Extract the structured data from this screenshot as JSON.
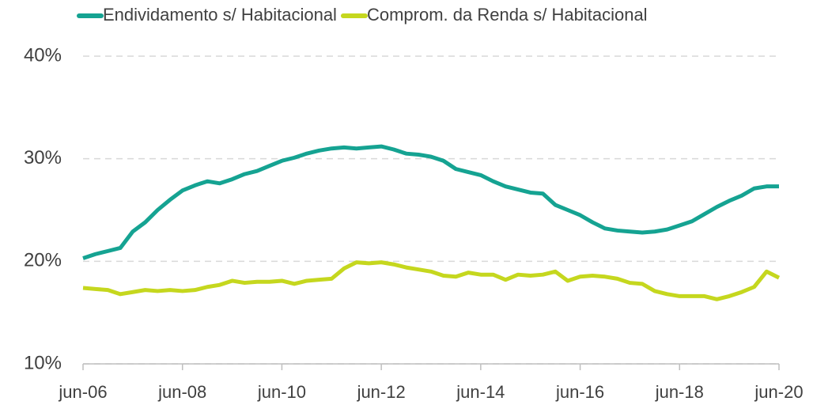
{
  "chart_data": {
    "type": "line",
    "categories": [
      "jun-06",
      null,
      null,
      null,
      null,
      null,
      null,
      null,
      "jun-08",
      null,
      null,
      null,
      null,
      null,
      null,
      null,
      "jun-10",
      null,
      null,
      null,
      null,
      null,
      null,
      null,
      "jun-12",
      null,
      null,
      null,
      null,
      null,
      null,
      null,
      "jun-14",
      null,
      null,
      null,
      null,
      null,
      null,
      null,
      "jun-16",
      null,
      null,
      null,
      null,
      null,
      null,
      null,
      "jun-18",
      null,
      null,
      null,
      null,
      null,
      null,
      null,
      "jun-20"
    ],
    "series": [
      {
        "name": "Endividamento s/ Habitacional",
        "color": "#15a392",
        "values": [
          20.3,
          20.7,
          21.0,
          21.3,
          22.9,
          23.8,
          25.0,
          26.0,
          26.9,
          27.4,
          27.8,
          27.6,
          28.0,
          28.5,
          28.8,
          29.3,
          29.8,
          30.1,
          30.5,
          30.8,
          31.0,
          31.1,
          31.0,
          31.1,
          31.2,
          30.9,
          30.5,
          30.4,
          30.2,
          29.8,
          29.0,
          28.7,
          28.4,
          27.8,
          27.3,
          27.0,
          26.7,
          26.6,
          25.5,
          25.0,
          24.5,
          23.8,
          23.2,
          23.0,
          22.9,
          22.8,
          22.9,
          23.1,
          23.5,
          23.9,
          24.6,
          25.3,
          25.9,
          26.4,
          27.1,
          27.3,
          27.3
        ]
      },
      {
        "name": "Comprom. da Renda s/ Habitacional",
        "color": "#c5d71e",
        "values": [
          17.4,
          17.3,
          17.2,
          16.8,
          17.0,
          17.2,
          17.1,
          17.2,
          17.1,
          17.2,
          17.5,
          17.7,
          18.1,
          17.9,
          18.0,
          18.0,
          18.1,
          17.8,
          18.1,
          18.2,
          18.3,
          19.3,
          19.9,
          19.8,
          19.9,
          19.7,
          19.4,
          19.2,
          19.0,
          18.6,
          18.5,
          18.9,
          18.7,
          18.7,
          18.2,
          18.7,
          18.6,
          18.7,
          19.0,
          18.1,
          18.5,
          18.6,
          18.5,
          18.3,
          17.9,
          17.8,
          17.1,
          16.8,
          16.6,
          16.6,
          16.6,
          16.3,
          16.6,
          17.0,
          17.5,
          19.0,
          18.4
        ]
      }
    ],
    "ylim": [
      10,
      40
    ],
    "yticks": [
      {
        "value": 10,
        "label": "10%"
      },
      {
        "value": 20,
        "label": "20%"
      },
      {
        "value": 30,
        "label": "30%"
      },
      {
        "value": 40,
        "label": "40%"
      }
    ],
    "grid": true,
    "legend": "top"
  }
}
